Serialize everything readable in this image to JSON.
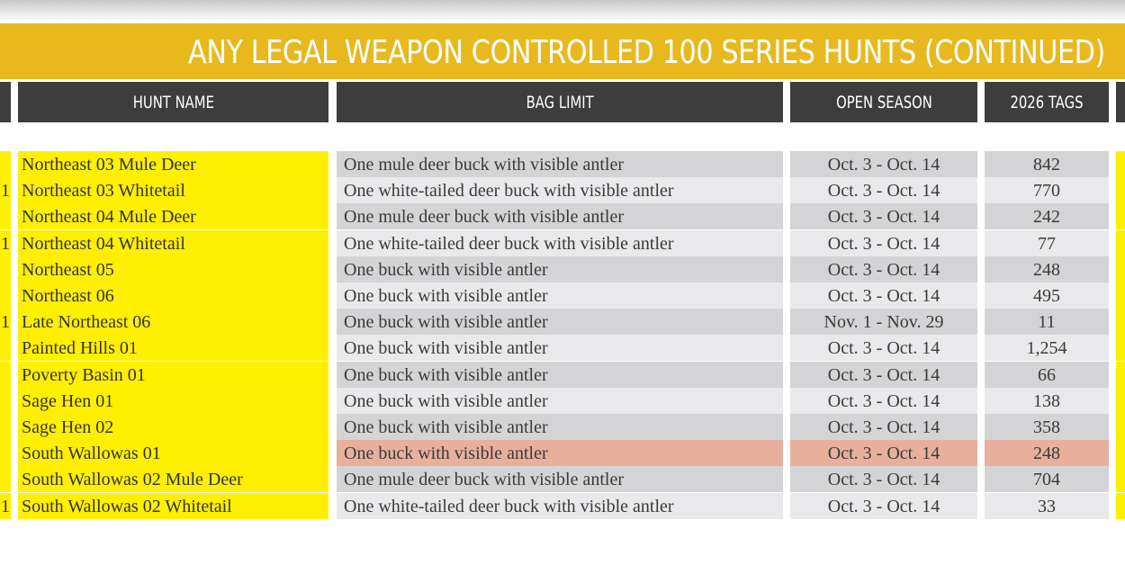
{
  "title": "ANY LEGAL WEAPON CONTROLLED 100 SERIES HUNTS (CONTINUED)",
  "columns": {
    "hunt_name": "HUNT NAME",
    "bag_limit": "BAG LIMIT",
    "open_season": "OPEN SEASON",
    "tags": "2026 TAGS"
  },
  "colors": {
    "banner": "#e7b91f",
    "header": "#3d3d3d",
    "name_highlight": "#ffef00",
    "row_dark": "#d4d4d6",
    "row_light": "#e9e9eb",
    "row_highlight": "#e8b09a"
  },
  "rows": [
    {
      "edge": "",
      "name": "Northeast 03 Mule Deer",
      "bag": "One mule deer buck with visible antler",
      "season": "Oct. 3 - Oct. 14",
      "tags": "842"
    },
    {
      "edge": "1",
      "name": "Northeast 03 Whitetail",
      "bag": "One white-tailed deer buck with visible antler",
      "season": "Oct. 3 - Oct. 14",
      "tags": "770"
    },
    {
      "edge": "",
      "name": "Northeast 04 Mule Deer",
      "bag": "One mule deer buck with visible antler",
      "season": "Oct. 3 - Oct. 14",
      "tags": "242"
    },
    {
      "edge": "1",
      "name": "Northeast 04 Whitetail",
      "bag": "One white-tailed deer buck with visible antler",
      "season": "Oct. 3 - Oct. 14",
      "tags": "77"
    },
    {
      "edge": "",
      "name": "Northeast 05",
      "bag": "One buck with visible antler",
      "season": "Oct. 3 - Oct. 14",
      "tags": "248"
    },
    {
      "edge": "",
      "name": "Northeast 06",
      "bag": "One buck with visible antler",
      "season": "Oct. 3 - Oct. 14",
      "tags": "495"
    },
    {
      "edge": "1",
      "name": "Late Northeast 06",
      "bag": "One buck with visible antler",
      "season": "Nov. 1 - Nov. 29",
      "tags": "11"
    },
    {
      "edge": "",
      "name": "Painted Hills 01",
      "bag": "One buck with visible antler",
      "season": "Oct. 3 - Oct. 14",
      "tags": "1,254"
    },
    {
      "edge": "",
      "name": "Poverty Basin 01",
      "bag": "One buck with visible antler",
      "season": "Oct. 3 - Oct. 14",
      "tags": "66"
    },
    {
      "edge": "",
      "name": "Sage Hen 01",
      "bag": "One buck with visible antler",
      "season": "Oct. 3 - Oct. 14",
      "tags": "138"
    },
    {
      "edge": "",
      "name": "Sage Hen 02",
      "bag": "One buck with visible antler",
      "season": "Oct. 3 - Oct. 14",
      "tags": "358"
    },
    {
      "edge": "",
      "name": "South Wallowas 01",
      "bag": "One buck with visible antler",
      "season": "Oct. 3 - Oct. 14",
      "tags": "248",
      "highlight": true
    },
    {
      "edge": "",
      "name": "South Wallowas 02 Mule Deer",
      "bag": "One mule deer buck with visible antler",
      "season": "Oct. 3 - Oct. 14",
      "tags": "704"
    },
    {
      "edge": "1",
      "name": "South Wallowas 02 Whitetail",
      "bag": "One white-tailed deer buck with visible antler",
      "season": "Oct. 3 - Oct. 14",
      "tags": "33"
    }
  ]
}
